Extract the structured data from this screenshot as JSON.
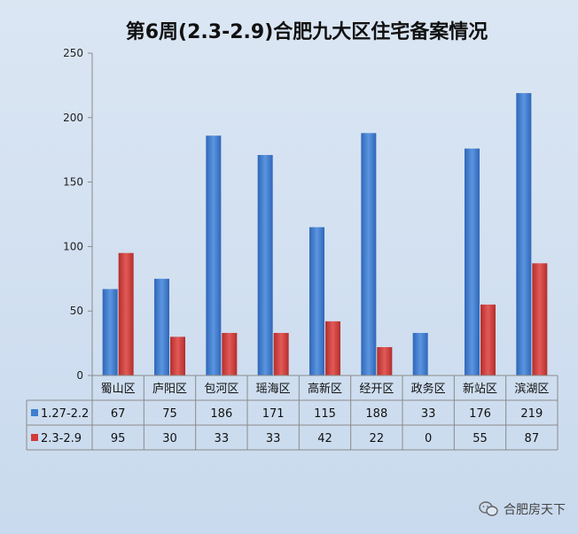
{
  "chart_data": {
    "type": "bar",
    "title": "第6周(2.3-2.9)合肥九大区住宅备案情况",
    "categories": [
      "蜀山区",
      "庐阳区",
      "包河区",
      "瑶海区",
      "高新区",
      "经开区",
      "政务区",
      "新站区",
      "滨湖区"
    ],
    "series": [
      {
        "name": "1.27-2.2",
        "values": [
          67,
          75,
          186,
          171,
          115,
          188,
          33,
          176,
          219
        ],
        "color": "#3f7ed0"
      },
      {
        "name": "2.3-2.9",
        "values": [
          95,
          30,
          33,
          33,
          42,
          22,
          0,
          55,
          87
        ],
        "color": "#d23c3a"
      }
    ],
    "ylim": [
      0,
      250
    ],
    "yticks": [
      0,
      50,
      100,
      150,
      200,
      250
    ],
    "grid": false,
    "legend": "data-table"
  },
  "watermark": {
    "text": "合肥房天下",
    "icon": "wechat-icon"
  }
}
